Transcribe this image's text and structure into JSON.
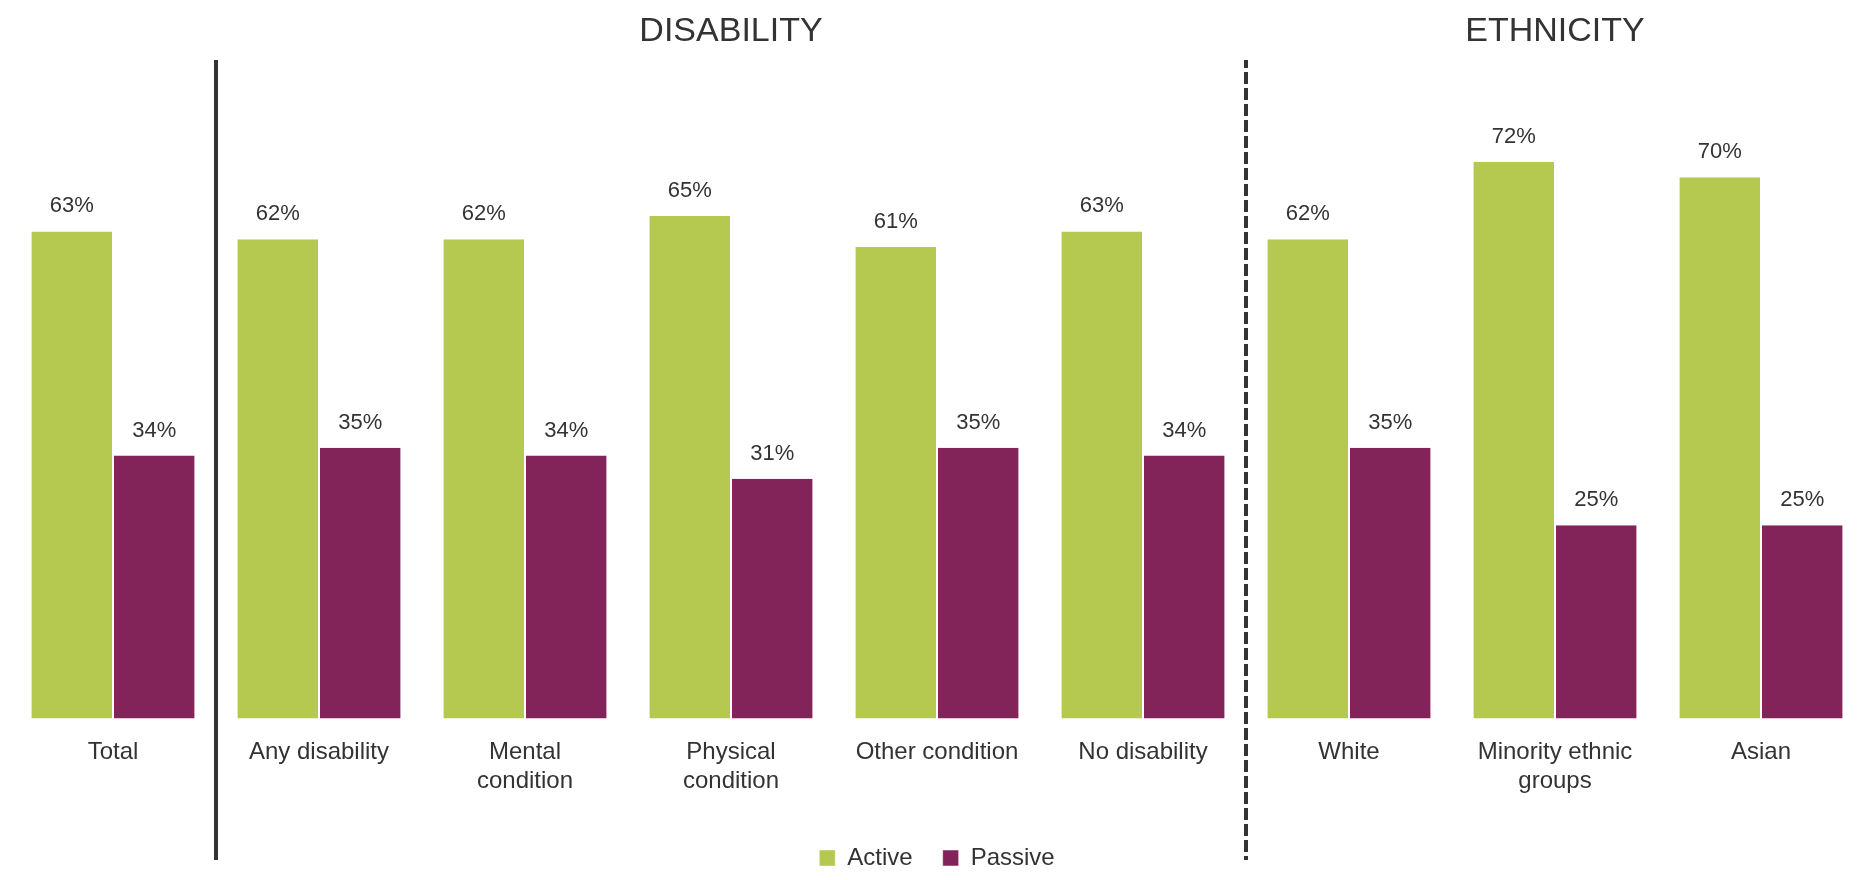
{
  "chart_data": {
    "type": "bar",
    "categories": [
      "Total",
      "Any disability",
      "Mental condition",
      "Physical condition",
      "Other condition",
      "No disability",
      "White",
      "Minority ethnic groups",
      "Asian"
    ],
    "series": [
      {
        "name": "Active",
        "color": "#b5c950",
        "values": [
          63,
          62,
          62,
          65,
          61,
          63,
          62,
          72,
          70
        ],
        "value_labels": [
          "63%",
          "62%",
          "62%",
          "65%",
          "61%",
          "63%",
          "62%",
          "72%",
          "70%"
        ]
      },
      {
        "name": "Passive",
        "color": "#82245a",
        "values": [
          34,
          35,
          34,
          31,
          35,
          34,
          35,
          25,
          25
        ],
        "value_labels": [
          "34%",
          "35%",
          "34%",
          "31%",
          "35%",
          "34%",
          "35%",
          "25%",
          "25%"
        ]
      }
    ],
    "legend": "bottom",
    "grid": false,
    "annotations": [
      "DISABILITY",
      "ETHNICITY"
    ]
  }
}
